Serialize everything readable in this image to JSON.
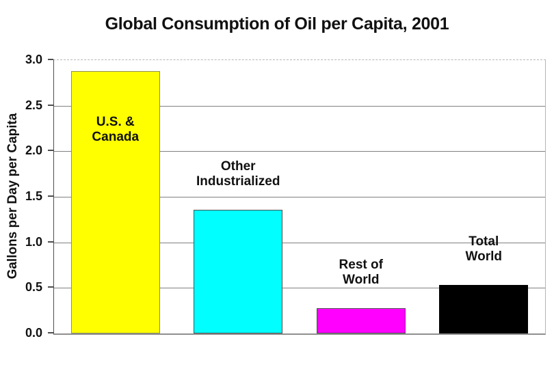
{
  "chart_data": {
    "type": "bar",
    "title": "Global Consumption of Oil per Capita, 2001",
    "ylabel": "Gallons per Day per Capita",
    "xlabel": "",
    "ylim": [
      0,
      3.0
    ],
    "yticks": [
      3.0,
      2.5,
      2.0,
      1.5,
      1.0,
      0.5,
      0.0
    ],
    "ytick_labels": [
      "3.0",
      "2.5",
      "2.0",
      "1.5",
      "1.0",
      "0.5",
      "0.0"
    ],
    "grid": true,
    "legend_position": "none",
    "categories": [
      "U.S. & Canada",
      "Other Industrialized",
      "Rest of World",
      "Total World"
    ],
    "values": [
      2.88,
      1.36,
      0.28,
      0.53
    ],
    "bars": [
      {
        "id": "us-canada",
        "category": "U.S. & Canada",
        "label_lines": [
          "U.S. &",
          "Canada"
        ],
        "value": 2.88,
        "color": "#ffff00",
        "border_color": "#8f8f5a",
        "label_placement": "inside"
      },
      {
        "id": "other-industrialized",
        "category": "Other Industrialized",
        "label_lines": [
          "Other",
          "Industrialized"
        ],
        "value": 1.36,
        "color": "#00ffff",
        "border_color": "#4d4d4d",
        "label_placement": "above"
      },
      {
        "id": "rest-of-world",
        "category": "Rest of World",
        "label_lines": [
          "Rest of",
          "World"
        ],
        "value": 0.28,
        "color": "#ff00ff",
        "border_color": "#4d4d4d",
        "label_placement": "above"
      },
      {
        "id": "total-world",
        "category": "Total World",
        "label_lines": [
          "Total",
          "World"
        ],
        "value": 0.53,
        "color": "#000000",
        "border_color": "#000000",
        "label_placement": "above"
      }
    ]
  },
  "palette": {
    "background": "#ffffff",
    "gridline": "#808080",
    "axis_line": "#4d4d4d",
    "plot_border": "#b5b5b5",
    "text": "#111111"
  }
}
